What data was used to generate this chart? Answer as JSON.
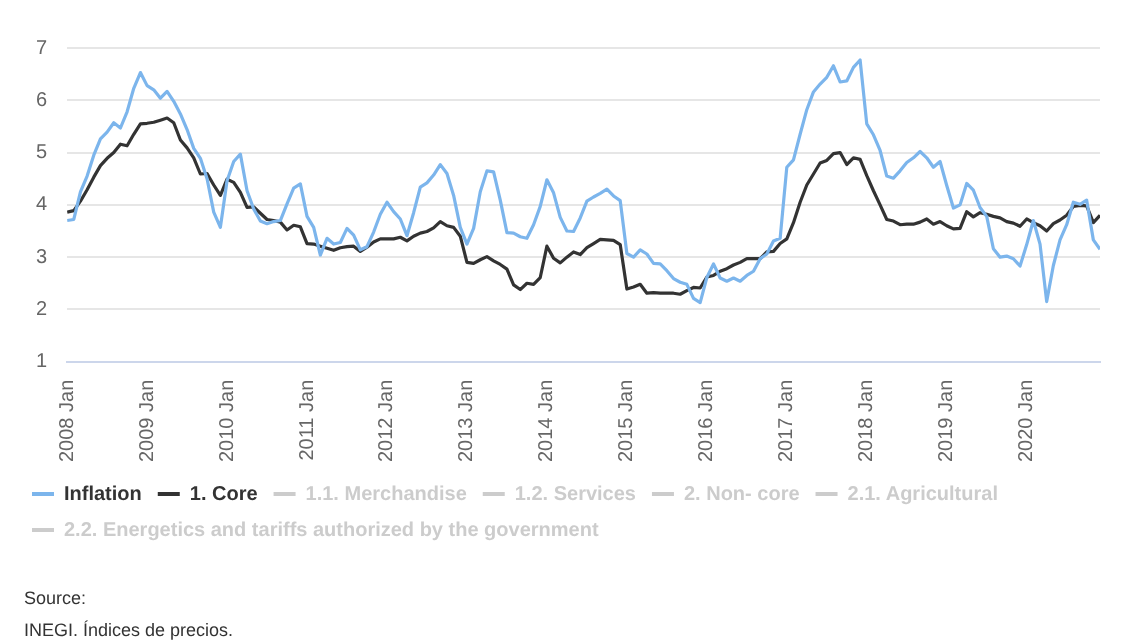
{
  "chart_data": {
    "type": "line",
    "x": [
      "2008-01",
      "2008-02",
      "2008-03",
      "2008-04",
      "2008-05",
      "2008-06",
      "2008-07",
      "2008-08",
      "2008-09",
      "2008-10",
      "2008-11",
      "2008-12",
      "2009-01",
      "2009-02",
      "2009-03",
      "2009-04",
      "2009-05",
      "2009-06",
      "2009-07",
      "2009-08",
      "2009-09",
      "2009-10",
      "2009-11",
      "2009-12",
      "2010-01",
      "2010-02",
      "2010-03",
      "2010-04",
      "2010-05",
      "2010-06",
      "2010-07",
      "2010-08",
      "2010-09",
      "2010-10",
      "2010-11",
      "2010-12",
      "2011-01",
      "2011-02",
      "2011-03",
      "2011-04",
      "2011-05",
      "2011-06",
      "2011-07",
      "2011-08",
      "2011-09",
      "2011-10",
      "2011-11",
      "2011-12",
      "2012-01",
      "2012-02",
      "2012-03",
      "2012-04",
      "2012-05",
      "2012-06",
      "2012-07",
      "2012-08",
      "2012-09",
      "2012-10",
      "2012-11",
      "2012-12",
      "2013-01",
      "2013-02",
      "2013-03",
      "2013-04",
      "2013-05",
      "2013-06",
      "2013-07",
      "2013-08",
      "2013-09",
      "2013-10",
      "2013-11",
      "2013-12",
      "2014-01",
      "2014-02",
      "2014-03",
      "2014-04",
      "2014-05",
      "2014-06",
      "2014-07",
      "2014-08",
      "2014-09",
      "2014-10",
      "2014-11",
      "2014-12",
      "2015-01",
      "2015-02",
      "2015-03",
      "2015-04",
      "2015-05",
      "2015-06",
      "2015-07",
      "2015-08",
      "2015-09",
      "2015-10",
      "2015-11",
      "2015-12",
      "2016-01",
      "2016-02",
      "2016-03",
      "2016-04",
      "2016-05",
      "2016-06",
      "2016-07",
      "2016-08",
      "2016-09",
      "2016-10",
      "2016-11",
      "2016-12",
      "2017-01",
      "2017-02",
      "2017-03",
      "2017-04",
      "2017-05",
      "2017-06",
      "2017-07",
      "2017-08",
      "2017-09",
      "2017-10",
      "2017-11",
      "2017-12",
      "2018-01",
      "2018-02",
      "2018-03",
      "2018-04",
      "2018-05",
      "2018-06",
      "2018-07",
      "2018-08",
      "2018-09",
      "2018-10",
      "2018-11",
      "2018-12",
      "2019-01",
      "2019-02",
      "2019-03",
      "2019-04",
      "2019-05",
      "2019-06",
      "2019-07",
      "2019-08",
      "2019-09",
      "2019-10",
      "2019-11",
      "2019-12",
      "2020-01",
      "2020-02",
      "2020-03",
      "2020-04",
      "2020-05",
      "2020-06",
      "2020-07",
      "2020-08",
      "2020-09",
      "2020-10",
      "2020-11",
      "2020-12"
    ],
    "series": [
      {
        "name": "Inflation",
        "color": "#7cb5ec",
        "values": [
          3.7,
          3.72,
          4.25,
          4.55,
          4.95,
          5.26,
          5.39,
          5.57,
          5.47,
          5.78,
          6.23,
          6.53,
          6.28,
          6.2,
          6.04,
          6.17,
          5.98,
          5.74,
          5.44,
          5.08,
          4.89,
          4.5,
          3.86,
          3.57,
          4.46,
          4.83,
          4.97,
          4.27,
          3.92,
          3.69,
          3.64,
          3.68,
          3.7,
          4.02,
          4.32,
          4.4,
          3.78,
          3.57,
          3.04,
          3.36,
          3.25,
          3.28,
          3.55,
          3.42,
          3.14,
          3.2,
          3.48,
          3.82,
          4.05,
          3.87,
          3.73,
          3.41,
          3.85,
          4.34,
          4.42,
          4.57,
          4.77,
          4.6,
          4.18,
          3.57,
          3.25,
          3.55,
          4.25,
          4.65,
          4.63,
          4.09,
          3.47,
          3.46,
          3.39,
          3.36,
          3.62,
          3.97,
          4.48,
          4.23,
          3.76,
          3.5,
          3.49,
          3.75,
          4.07,
          4.15,
          4.22,
          4.3,
          4.17,
          4.08,
          3.07,
          3.0,
          3.14,
          3.06,
          2.88,
          2.87,
          2.74,
          2.59,
          2.52,
          2.48,
          2.21,
          2.13,
          2.61,
          2.87,
          2.6,
          2.54,
          2.6,
          2.54,
          2.65,
          2.73,
          2.97,
          3.06,
          3.31,
          3.36,
          4.72,
          4.86,
          5.35,
          5.82,
          6.16,
          6.31,
          6.44,
          6.66,
          6.35,
          6.37,
          6.63,
          6.77,
          5.55,
          5.34,
          5.04,
          4.55,
          4.51,
          4.65,
          4.81,
          4.9,
          5.02,
          4.9,
          4.72,
          4.83,
          4.37,
          3.94,
          4.0,
          4.41,
          4.28,
          3.95,
          3.78,
          3.16,
          3.0,
          3.02,
          2.97,
          2.83,
          3.24,
          3.7,
          3.25,
          2.15,
          2.84,
          3.33,
          3.62,
          4.05,
          4.01,
          4.09,
          3.33,
          3.15
        ]
      },
      {
        "name": "1. Core",
        "color": "#333333",
        "values": [
          3.86,
          3.89,
          4.07,
          4.29,
          4.53,
          4.75,
          4.89,
          5.0,
          5.16,
          5.13,
          5.35,
          5.55,
          5.56,
          5.58,
          5.62,
          5.66,
          5.57,
          5.24,
          5.09,
          4.9,
          4.59,
          4.6,
          4.38,
          4.18,
          4.49,
          4.43,
          4.24,
          3.95,
          3.96,
          3.84,
          3.72,
          3.7,
          3.67,
          3.52,
          3.61,
          3.58,
          3.26,
          3.25,
          3.21,
          3.17,
          3.13,
          3.18,
          3.2,
          3.21,
          3.11,
          3.19,
          3.29,
          3.35,
          3.35,
          3.35,
          3.38,
          3.31,
          3.4,
          3.46,
          3.49,
          3.56,
          3.68,
          3.6,
          3.57,
          3.4,
          2.9,
          2.88,
          2.95,
          3.01,
          2.93,
          2.86,
          2.77,
          2.47,
          2.38,
          2.5,
          2.48,
          2.61,
          3.21,
          2.98,
          2.89,
          3.0,
          3.1,
          3.05,
          3.18,
          3.26,
          3.34,
          3.33,
          3.32,
          3.24,
          2.39,
          2.43,
          2.48,
          2.31,
          2.32,
          2.31,
          2.31,
          2.31,
          2.29,
          2.36,
          2.42,
          2.41,
          2.62,
          2.65,
          2.73,
          2.78,
          2.85,
          2.9,
          2.97,
          2.97,
          2.97,
          3.1,
          3.11,
          3.26,
          3.35,
          3.66,
          4.05,
          4.38,
          4.59,
          4.8,
          4.85,
          4.98,
          5.0,
          4.77,
          4.9,
          4.87,
          4.56,
          4.27,
          4.0,
          3.72,
          3.69,
          3.62,
          3.63,
          3.63,
          3.67,
          3.73,
          3.63,
          3.68,
          3.6,
          3.54,
          3.55,
          3.87,
          3.77,
          3.85,
          3.82,
          3.78,
          3.75,
          3.68,
          3.65,
          3.59,
          3.73,
          3.66,
          3.6,
          3.5,
          3.64,
          3.71,
          3.8,
          3.97,
          3.99,
          3.98,
          3.66,
          3.8
        ]
      },
      {
        "name": "1.1. Merchandise",
        "color": "#cccccc",
        "values": [
          null,
          null,
          null,
          null,
          null,
          null,
          null,
          null,
          null,
          null,
          null,
          null,
          null,
          null,
          null,
          null,
          null,
          null,
          null,
          null,
          null,
          null,
          null,
          null,
          null,
          null,
          null,
          null,
          null,
          null,
          null,
          null,
          null,
          null,
          null,
          null,
          null,
          null,
          null,
          null,
          null,
          null,
          null,
          null,
          null,
          null,
          null,
          null,
          null,
          null,
          null,
          null,
          null,
          null,
          null,
          null,
          null,
          null,
          null,
          null,
          null,
          null,
          null,
          null,
          null,
          null,
          null,
          null,
          null,
          null,
          null,
          null,
          null,
          null,
          null,
          null,
          null,
          null,
          null,
          null,
          null,
          null,
          null,
          null,
          null,
          null,
          null,
          null,
          null,
          null,
          null,
          null,
          null,
          null,
          null,
          null,
          null,
          null,
          null,
          null,
          null,
          null,
          null,
          null,
          null,
          null,
          null,
          null,
          null,
          null,
          null,
          null,
          null,
          null,
          null,
          null,
          null,
          null,
          null,
          null,
          null,
          null,
          null,
          null,
          null,
          null,
          null,
          null,
          null,
          null,
          null,
          null,
          null,
          null,
          null,
          null,
          null,
          null,
          null,
          null,
          null,
          null,
          null,
          null,
          null,
          null,
          null,
          null,
          null,
          null,
          null,
          null,
          null,
          null,
          null,
          null
        ]
      },
      {
        "name": "1.2. Services",
        "color": "#cccccc",
        "values": [
          null,
          null,
          null,
          null,
          null,
          null,
          null,
          null,
          null,
          null,
          null,
          null,
          null,
          null,
          null,
          null,
          null,
          null,
          null,
          null,
          null,
          null,
          null,
          null,
          null,
          null,
          null,
          null,
          null,
          null,
          null,
          null,
          null,
          null,
          null,
          null,
          null,
          null,
          null,
          null,
          null,
          null,
          null,
          null,
          null,
          null,
          null,
          null,
          null,
          null,
          null,
          null,
          null,
          null,
          null,
          null,
          null,
          null,
          null,
          null,
          null,
          null,
          null,
          null,
          null,
          null,
          null,
          null,
          null,
          null,
          null,
          null,
          null,
          null,
          null,
          null,
          null,
          null,
          null,
          null,
          null,
          null,
          null,
          null,
          null,
          null,
          null,
          null,
          null,
          null,
          null,
          null,
          null,
          null,
          null,
          null,
          null,
          null,
          null,
          null,
          null,
          null,
          null,
          null,
          null,
          null,
          null,
          null,
          null,
          null,
          null,
          null,
          null,
          null,
          null,
          null,
          null,
          null,
          null,
          null,
          null,
          null,
          null,
          null,
          null,
          null,
          null,
          null,
          null,
          null,
          null,
          null,
          null,
          null,
          null,
          null,
          null,
          null,
          null,
          null,
          null,
          null,
          null,
          null,
          null,
          null,
          null,
          null,
          null,
          null,
          null,
          null,
          null,
          null,
          null,
          null
        ]
      },
      {
        "name": "2. Non- core",
        "color": "#cccccc",
        "values": [
          null,
          null,
          null,
          null,
          null,
          null,
          null,
          null,
          null,
          null,
          null,
          null,
          null,
          null,
          null,
          null,
          null,
          null,
          null,
          null,
          null,
          null,
          null,
          null,
          null,
          null,
          null,
          null,
          null,
          null,
          null,
          null,
          null,
          null,
          null,
          null,
          null,
          null,
          null,
          null,
          null,
          null,
          null,
          null,
          null,
          null,
          null,
          null,
          null,
          null,
          null,
          null,
          null,
          null,
          null,
          null,
          null,
          null,
          null,
          null,
          null,
          null,
          null,
          null,
          null,
          null,
          null,
          null,
          null,
          null,
          null,
          null,
          null,
          null,
          null,
          null,
          null,
          null,
          null,
          null,
          null,
          null,
          null,
          null,
          null,
          null,
          null,
          null,
          null,
          null,
          null,
          null,
          null,
          null,
          null,
          null,
          null,
          null,
          null,
          null,
          null,
          null,
          null,
          null,
          null,
          null,
          null,
          null,
          null,
          null,
          null,
          null,
          null,
          null,
          null,
          null,
          null,
          null,
          null,
          null,
          null,
          null,
          null,
          null,
          null,
          null,
          null,
          null,
          null,
          null,
          null,
          null,
          null,
          null,
          null,
          null,
          null,
          null,
          null,
          null,
          null,
          null,
          null,
          null,
          null,
          null,
          null,
          null,
          null,
          null,
          null,
          null,
          null,
          null,
          null,
          null
        ]
      },
      {
        "name": "2.1. Agricultural",
        "color": "#cccccc",
        "values": [
          null,
          null,
          null,
          null,
          null,
          null,
          null,
          null,
          null,
          null,
          null,
          null,
          null,
          null,
          null,
          null,
          null,
          null,
          null,
          null,
          null,
          null,
          null,
          null,
          null,
          null,
          null,
          null,
          null,
          null,
          null,
          null,
          null,
          null,
          null,
          null,
          null,
          null,
          null,
          null,
          null,
          null,
          null,
          null,
          null,
          null,
          null,
          null,
          null,
          null,
          null,
          null,
          null,
          null,
          null,
          null,
          null,
          null,
          null,
          null,
          null,
          null,
          null,
          null,
          null,
          null,
          null,
          null,
          null,
          null,
          null,
          null,
          null,
          null,
          null,
          null,
          null,
          null,
          null,
          null,
          null,
          null,
          null,
          null,
          null,
          null,
          null,
          null,
          null,
          null,
          null,
          null,
          null,
          null,
          null,
          null,
          null,
          null,
          null,
          null,
          null,
          null,
          null,
          null,
          null,
          null,
          null,
          null,
          null,
          null,
          null,
          null,
          null,
          null,
          null,
          null,
          null,
          null,
          null,
          null,
          null,
          null,
          null,
          null,
          null,
          null,
          null,
          null,
          null,
          null,
          null,
          null,
          null,
          null,
          null,
          null,
          null,
          null,
          null,
          null,
          null,
          null,
          null,
          null,
          null,
          null,
          null,
          null,
          null,
          null,
          null,
          null,
          null,
          null,
          null,
          null
        ]
      },
      {
        "name": "2.2. Energetics and tariffs authorized by the government",
        "color": "#cccccc",
        "values": [
          null,
          null,
          null,
          null,
          null,
          null,
          null,
          null,
          null,
          null,
          null,
          null,
          null,
          null,
          null,
          null,
          null,
          null,
          null,
          null,
          null,
          null,
          null,
          null,
          null,
          null,
          null,
          null,
          null,
          null,
          null,
          null,
          null,
          null,
          null,
          null,
          null,
          null,
          null,
          null,
          null,
          null,
          null,
          null,
          null,
          null,
          null,
          null,
          null,
          null,
          null,
          null,
          null,
          null,
          null,
          null,
          null,
          null,
          null,
          null,
          null,
          null,
          null,
          null,
          null,
          null,
          null,
          null,
          null,
          null,
          null,
          null,
          null,
          null,
          null,
          null,
          null,
          null,
          null,
          null,
          null,
          null,
          null,
          null,
          null,
          null,
          null,
          null,
          null,
          null,
          null,
          null,
          null,
          null,
          null,
          null,
          null,
          null,
          null,
          null,
          null,
          null,
          null,
          null,
          null,
          null,
          null,
          null,
          null,
          null,
          null,
          null,
          null,
          null,
          null,
          null,
          null,
          null,
          null,
          null,
          null,
          null,
          null,
          null,
          null,
          null,
          null,
          null,
          null,
          null,
          null,
          null,
          null,
          null,
          null,
          null,
          null,
          null,
          null,
          null,
          null,
          null,
          null,
          null,
          null,
          null,
          null,
          null,
          null,
          null,
          null,
          null,
          null,
          null,
          null,
          null
        ]
      }
    ],
    "xlim": [
      "2008-01",
      "2020-12"
    ],
    "xticks": [
      {
        "value": "2008-01",
        "label": "2008 Jan"
      },
      {
        "value": "2009-01",
        "label": "2009 Jan"
      },
      {
        "value": "2010-01",
        "label": "2010 Jan"
      },
      {
        "value": "2011-01",
        "label": "2011 Jan"
      },
      {
        "value": "2012-01",
        "label": "2012 Jan"
      },
      {
        "value": "2013-01",
        "label": "2013 Jan"
      },
      {
        "value": "2014-01",
        "label": "2014 Jan"
      },
      {
        "value": "2015-01",
        "label": "2015 Jan"
      },
      {
        "value": "2016-01",
        "label": "2016 Jan"
      },
      {
        "value": "2017-01",
        "label": "2017 Jan"
      },
      {
        "value": "2018-01",
        "label": "2018 Jan"
      },
      {
        "value": "2019-01",
        "label": "2019 Jan"
      },
      {
        "value": "2020-01",
        "label": "2020 Jan"
      }
    ],
    "ylim": [
      1,
      7
    ],
    "yticks": [
      1,
      2,
      3,
      4,
      5,
      6,
      7
    ],
    "grid": "y",
    "legend": "bottom",
    "marker": "none",
    "line_style": "solid",
    "annotations": [
      "Source:",
      "INEGI. Índices de precios."
    ]
  }
}
